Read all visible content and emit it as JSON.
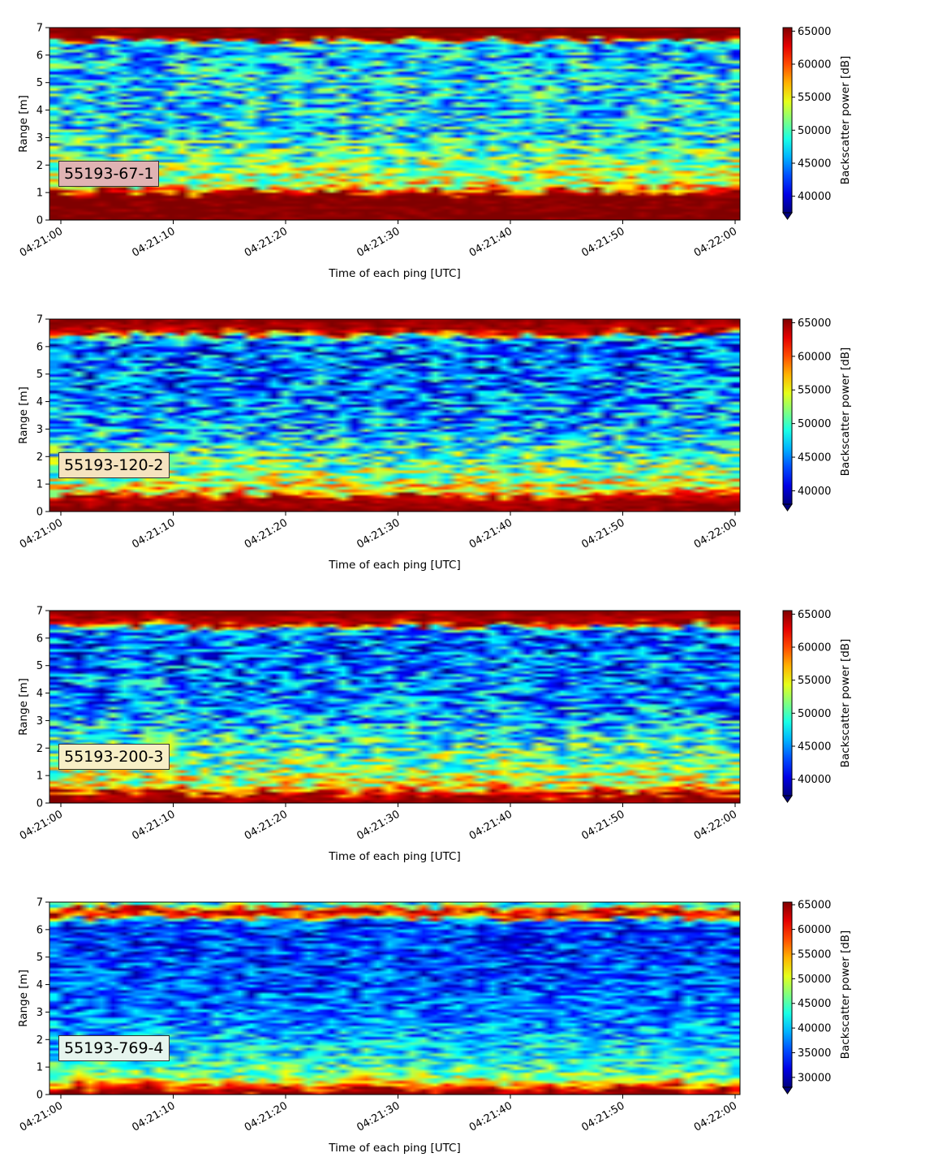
{
  "chart_data": [
    {
      "type": "heatmap",
      "label": "55193-67-1",
      "label_bg": "#e0b3b3",
      "xlabel": "Time of each ping [UTC]",
      "ylabel": "Range [m]",
      "x_ticks": [
        "04:21:00",
        "04:21:10",
        "04:21:20",
        "04:21:30",
        "04:21:40",
        "04:21:50",
        "04:22:00"
      ],
      "x_range": [
        "04:21:00",
        "04:22:00"
      ],
      "y_ticks": [
        0,
        1,
        2,
        3,
        4,
        5,
        6,
        7
      ],
      "ylim": [
        0,
        7
      ],
      "colorbar": {
        "label": "Backscatter power [dB]",
        "colormap": "jet",
        "ticks": [
          40000,
          45000,
          50000,
          55000,
          60000,
          65000
        ],
        "range": [
          37500,
          65535
        ],
        "extend": "min"
      },
      "profile": [
        {
          "range": 0.0,
          "value": 65535
        },
        {
          "range": 0.25,
          "value": 65535
        },
        {
          "range": 0.9,
          "value": 65535
        },
        {
          "range": 1.05,
          "value": 60000
        },
        {
          "range": 1.2,
          "value": 55000
        },
        {
          "range": 2.0,
          "value": 51500
        },
        {
          "range": 3.0,
          "value": 48000
        },
        {
          "range": 4.0,
          "value": 47000
        },
        {
          "range": 5.0,
          "value": 47500
        },
        {
          "range": 6.0,
          "value": 46500
        },
        {
          "range": 6.45,
          "value": 47000
        },
        {
          "range": 6.6,
          "value": 65000
        },
        {
          "range": 7.0,
          "value": 65535
        }
      ]
    },
    {
      "type": "heatmap",
      "label": "55193-120-2",
      "label_bg": "#f5e3bf",
      "xlabel": "Time of each ping [UTC]",
      "ylabel": "Range [m]",
      "x_ticks": [
        "04:21:00",
        "04:21:10",
        "04:21:20",
        "04:21:30",
        "04:21:40",
        "04:21:50",
        "04:22:00"
      ],
      "x_range": [
        "04:21:00",
        "04:22:00"
      ],
      "y_ticks": [
        0,
        1,
        2,
        3,
        4,
        5,
        6,
        7
      ],
      "ylim": [
        0,
        7
      ],
      "colorbar": {
        "label": "Backscatter power [dB]",
        "colormap": "jet",
        "ticks": [
          40000,
          45000,
          50000,
          55000,
          60000,
          65000
        ],
        "range": [
          38000,
          65535
        ],
        "extend": "min"
      },
      "profile": [
        {
          "range": 0.0,
          "value": 65535
        },
        {
          "range": 0.5,
          "value": 64000
        },
        {
          "range": 0.7,
          "value": 56000
        },
        {
          "range": 1.0,
          "value": 54000
        },
        {
          "range": 2.0,
          "value": 50000
        },
        {
          "range": 3.0,
          "value": 46500
        },
        {
          "range": 4.0,
          "value": 45000
        },
        {
          "range": 5.0,
          "value": 44500
        },
        {
          "range": 6.0,
          "value": 44000
        },
        {
          "range": 6.35,
          "value": 46000
        },
        {
          "range": 6.5,
          "value": 63000
        },
        {
          "range": 7.0,
          "value": 65535
        }
      ]
    },
    {
      "type": "heatmap",
      "label": "55193-200-3",
      "label_bg": "#f7efc6",
      "xlabel": "Time of each ping [UTC]",
      "ylabel": "Range [m]",
      "x_ticks": [
        "04:21:00",
        "04:21:10",
        "04:21:20",
        "04:21:30",
        "04:21:40",
        "04:21:50",
        "04:22:00"
      ],
      "x_range": [
        "04:21:00",
        "04:22:00"
      ],
      "y_ticks": [
        0,
        1,
        2,
        3,
        4,
        5,
        6,
        7
      ],
      "ylim": [
        0,
        7
      ],
      "colorbar": {
        "label": "Backscatter power [dB]",
        "colormap": "jet",
        "ticks": [
          40000,
          45000,
          50000,
          55000,
          60000,
          65000
        ],
        "range": [
          37500,
          65535
        ],
        "extend": "min"
      },
      "profile": [
        {
          "range": 0.0,
          "value": 65535
        },
        {
          "range": 0.35,
          "value": 63000
        },
        {
          "range": 0.6,
          "value": 55000
        },
        {
          "range": 1.0,
          "value": 53000
        },
        {
          "range": 2.0,
          "value": 49500
        },
        {
          "range": 3.0,
          "value": 46000
        },
        {
          "range": 4.0,
          "value": 44500
        },
        {
          "range": 5.0,
          "value": 44000
        },
        {
          "range": 6.0,
          "value": 43500
        },
        {
          "range": 6.35,
          "value": 46000
        },
        {
          "range": 6.5,
          "value": 63000
        },
        {
          "range": 7.0,
          "value": 65535
        }
      ]
    },
    {
      "type": "heatmap",
      "label": "55193-769-4",
      "label_bg": "#e6f5ee",
      "xlabel": "Time of each ping [UTC]",
      "ylabel": "Range [m]",
      "x_ticks": [
        "04:21:00",
        "04:21:10",
        "04:21:20",
        "04:21:30",
        "04:21:40",
        "04:21:50",
        "04:22:00"
      ],
      "x_range": [
        "04:21:00",
        "04:22:00"
      ],
      "y_ticks": [
        0,
        1,
        2,
        3,
        4,
        5,
        6,
        7
      ],
      "ylim": [
        0,
        7
      ],
      "colorbar": {
        "label": "Backscatter power [dB]",
        "colormap": "jet",
        "ticks": [
          30000,
          35000,
          40000,
          45000,
          50000,
          55000,
          60000,
          65000
        ],
        "range": [
          28000,
          65535
        ],
        "extend": "min"
      },
      "profile": [
        {
          "range": 0.0,
          "value": 65535
        },
        {
          "range": 0.3,
          "value": 58000
        },
        {
          "range": 0.6,
          "value": 47000
        },
        {
          "range": 1.0,
          "value": 44000
        },
        {
          "range": 2.0,
          "value": 39500
        },
        {
          "range": 3.0,
          "value": 37000
        },
        {
          "range": 4.0,
          "value": 35500
        },
        {
          "range": 5.0,
          "value": 35000
        },
        {
          "range": 6.0,
          "value": 34500
        },
        {
          "range": 6.3,
          "value": 36000
        },
        {
          "range": 6.45,
          "value": 58000
        },
        {
          "range": 6.7,
          "value": 62000
        },
        {
          "range": 6.85,
          "value": 46000
        },
        {
          "range": 7.0,
          "value": 42000
        }
      ]
    }
  ]
}
